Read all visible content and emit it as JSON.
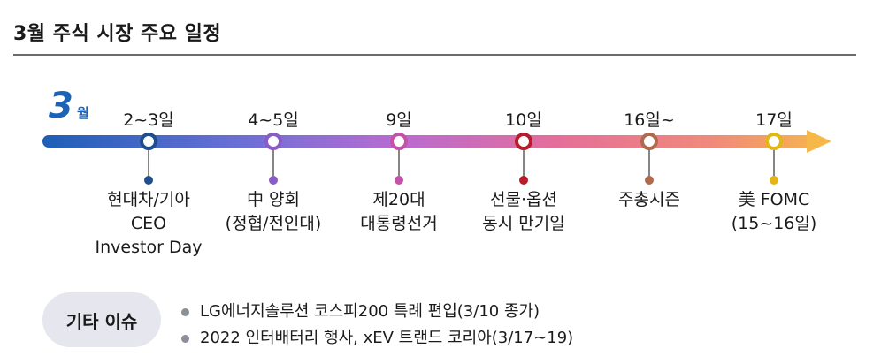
{
  "title": "3월 주식 시장 주요 일정",
  "month": {
    "number": "3",
    "suffix": "월"
  },
  "colors": {
    "month": "#1c63b8",
    "pill_bg": "#e6e7ee"
  },
  "timeline": [
    {
      "date": "2~3일",
      "lines": [
        "현대차/기아",
        "CEO",
        "Investor Day"
      ],
      "color": "#1f4e8c"
    },
    {
      "date": "4~5일",
      "lines": [
        "中 양회",
        "(정협/전인대)"
      ],
      "color": "#8a5cc6"
    },
    {
      "date": "9일",
      "lines": [
        "제20대",
        "대통령선거"
      ],
      "color": "#c552a8"
    },
    {
      "date": "10일",
      "lines": [
        "선물·옵션",
        "동시 만기일"
      ],
      "color": "#b81c2c"
    },
    {
      "date": "16일~",
      "lines": [
        "주총시즌"
      ],
      "color": "#b06a4e"
    },
    {
      "date": "17일",
      "lines": [
        "美 FOMC",
        "(15~16일)"
      ],
      "color": "#e3b515"
    }
  ],
  "other": {
    "label": "기타 이슈",
    "items": [
      "LG에너지솔루션 코스피200 특례 편입(3/10 종가)",
      "2022 인터배터리 행사, xEV 트랜드 코리아(3/17~19)"
    ]
  }
}
